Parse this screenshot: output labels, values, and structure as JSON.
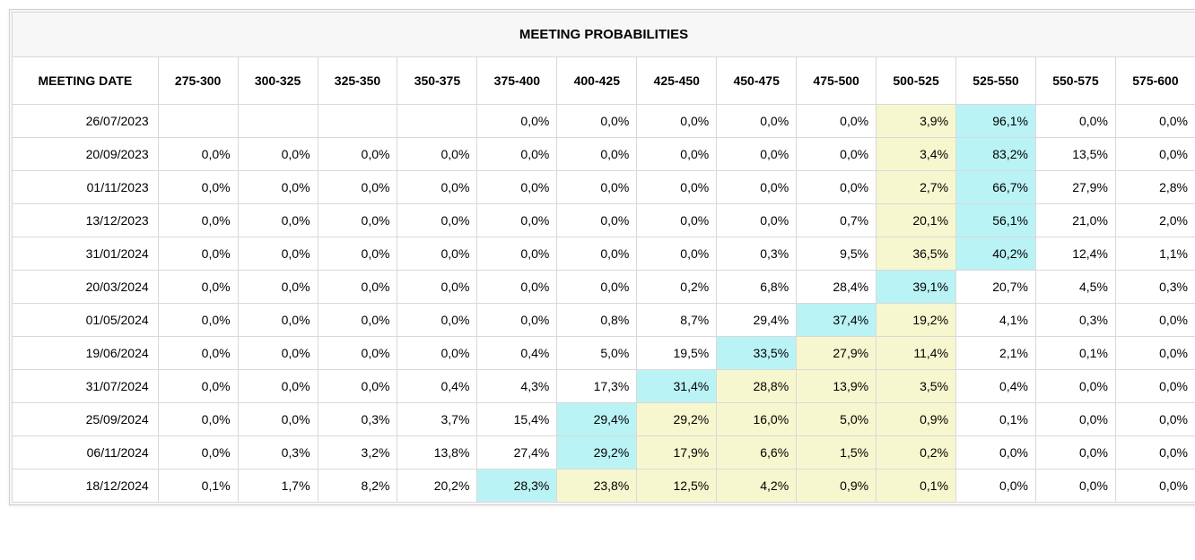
{
  "title": "MEETING PROBABILITIES",
  "date_header": "MEETING DATE",
  "columns": [
    "275-300",
    "300-325",
    "325-350",
    "350-375",
    "375-400",
    "400-425",
    "425-450",
    "450-475",
    "475-500",
    "500-525",
    "525-550",
    "550-575",
    "575-600"
  ],
  "highlight_colors": {
    "max": "#baf3f5",
    "secondary": "#f6f7cf",
    "none": "#ffffff"
  },
  "rows": [
    {
      "date": "26/07/2023",
      "cells": [
        {
          "v": "",
          "h": "none"
        },
        {
          "v": "",
          "h": "none"
        },
        {
          "v": "",
          "h": "none"
        },
        {
          "v": "",
          "h": "none"
        },
        {
          "v": "0,0%",
          "h": "none"
        },
        {
          "v": "0,0%",
          "h": "none"
        },
        {
          "v": "0,0%",
          "h": "none"
        },
        {
          "v": "0,0%",
          "h": "none"
        },
        {
          "v": "0,0%",
          "h": "none"
        },
        {
          "v": "3,9%",
          "h": "secondary"
        },
        {
          "v": "96,1%",
          "h": "max"
        },
        {
          "v": "0,0%",
          "h": "none"
        },
        {
          "v": "0,0%",
          "h": "none"
        }
      ]
    },
    {
      "date": "20/09/2023",
      "cells": [
        {
          "v": "0,0%",
          "h": "none"
        },
        {
          "v": "0,0%",
          "h": "none"
        },
        {
          "v": "0,0%",
          "h": "none"
        },
        {
          "v": "0,0%",
          "h": "none"
        },
        {
          "v": "0,0%",
          "h": "none"
        },
        {
          "v": "0,0%",
          "h": "none"
        },
        {
          "v": "0,0%",
          "h": "none"
        },
        {
          "v": "0,0%",
          "h": "none"
        },
        {
          "v": "0,0%",
          "h": "none"
        },
        {
          "v": "3,4%",
          "h": "secondary"
        },
        {
          "v": "83,2%",
          "h": "max"
        },
        {
          "v": "13,5%",
          "h": "none"
        },
        {
          "v": "0,0%",
          "h": "none"
        }
      ]
    },
    {
      "date": "01/11/2023",
      "cells": [
        {
          "v": "0,0%",
          "h": "none"
        },
        {
          "v": "0,0%",
          "h": "none"
        },
        {
          "v": "0,0%",
          "h": "none"
        },
        {
          "v": "0,0%",
          "h": "none"
        },
        {
          "v": "0,0%",
          "h": "none"
        },
        {
          "v": "0,0%",
          "h": "none"
        },
        {
          "v": "0,0%",
          "h": "none"
        },
        {
          "v": "0,0%",
          "h": "none"
        },
        {
          "v": "0,0%",
          "h": "none"
        },
        {
          "v": "2,7%",
          "h": "secondary"
        },
        {
          "v": "66,7%",
          "h": "max"
        },
        {
          "v": "27,9%",
          "h": "none"
        },
        {
          "v": "2,8%",
          "h": "none"
        }
      ]
    },
    {
      "date": "13/12/2023",
      "cells": [
        {
          "v": "0,0%",
          "h": "none"
        },
        {
          "v": "0,0%",
          "h": "none"
        },
        {
          "v": "0,0%",
          "h": "none"
        },
        {
          "v": "0,0%",
          "h": "none"
        },
        {
          "v": "0,0%",
          "h": "none"
        },
        {
          "v": "0,0%",
          "h": "none"
        },
        {
          "v": "0,0%",
          "h": "none"
        },
        {
          "v": "0,0%",
          "h": "none"
        },
        {
          "v": "0,7%",
          "h": "none"
        },
        {
          "v": "20,1%",
          "h": "secondary"
        },
        {
          "v": "56,1%",
          "h": "max"
        },
        {
          "v": "21,0%",
          "h": "none"
        },
        {
          "v": "2,0%",
          "h": "none"
        }
      ]
    },
    {
      "date": "31/01/2024",
      "cells": [
        {
          "v": "0,0%",
          "h": "none"
        },
        {
          "v": "0,0%",
          "h": "none"
        },
        {
          "v": "0,0%",
          "h": "none"
        },
        {
          "v": "0,0%",
          "h": "none"
        },
        {
          "v": "0,0%",
          "h": "none"
        },
        {
          "v": "0,0%",
          "h": "none"
        },
        {
          "v": "0,0%",
          "h": "none"
        },
        {
          "v": "0,3%",
          "h": "none"
        },
        {
          "v": "9,5%",
          "h": "none"
        },
        {
          "v": "36,5%",
          "h": "secondary"
        },
        {
          "v": "40,2%",
          "h": "max"
        },
        {
          "v": "12,4%",
          "h": "none"
        },
        {
          "v": "1,1%",
          "h": "none"
        }
      ]
    },
    {
      "date": "20/03/2024",
      "cells": [
        {
          "v": "0,0%",
          "h": "none"
        },
        {
          "v": "0,0%",
          "h": "none"
        },
        {
          "v": "0,0%",
          "h": "none"
        },
        {
          "v": "0,0%",
          "h": "none"
        },
        {
          "v": "0,0%",
          "h": "none"
        },
        {
          "v": "0,0%",
          "h": "none"
        },
        {
          "v": "0,2%",
          "h": "none"
        },
        {
          "v": "6,8%",
          "h": "none"
        },
        {
          "v": "28,4%",
          "h": "none"
        },
        {
          "v": "39,1%",
          "h": "max"
        },
        {
          "v": "20,7%",
          "h": "none"
        },
        {
          "v": "4,5%",
          "h": "none"
        },
        {
          "v": "0,3%",
          "h": "none"
        }
      ]
    },
    {
      "date": "01/05/2024",
      "cells": [
        {
          "v": "0,0%",
          "h": "none"
        },
        {
          "v": "0,0%",
          "h": "none"
        },
        {
          "v": "0,0%",
          "h": "none"
        },
        {
          "v": "0,0%",
          "h": "none"
        },
        {
          "v": "0,0%",
          "h": "none"
        },
        {
          "v": "0,8%",
          "h": "none"
        },
        {
          "v": "8,7%",
          "h": "none"
        },
        {
          "v": "29,4%",
          "h": "none"
        },
        {
          "v": "37,4%",
          "h": "max"
        },
        {
          "v": "19,2%",
          "h": "secondary"
        },
        {
          "v": "4,1%",
          "h": "none"
        },
        {
          "v": "0,3%",
          "h": "none"
        },
        {
          "v": "0,0%",
          "h": "none"
        }
      ]
    },
    {
      "date": "19/06/2024",
      "cells": [
        {
          "v": "0,0%",
          "h": "none"
        },
        {
          "v": "0,0%",
          "h": "none"
        },
        {
          "v": "0,0%",
          "h": "none"
        },
        {
          "v": "0,0%",
          "h": "none"
        },
        {
          "v": "0,4%",
          "h": "none"
        },
        {
          "v": "5,0%",
          "h": "none"
        },
        {
          "v": "19,5%",
          "h": "none"
        },
        {
          "v": "33,5%",
          "h": "max"
        },
        {
          "v": "27,9%",
          "h": "secondary"
        },
        {
          "v": "11,4%",
          "h": "secondary"
        },
        {
          "v": "2,1%",
          "h": "none"
        },
        {
          "v": "0,1%",
          "h": "none"
        },
        {
          "v": "0,0%",
          "h": "none"
        }
      ]
    },
    {
      "date": "31/07/2024",
      "cells": [
        {
          "v": "0,0%",
          "h": "none"
        },
        {
          "v": "0,0%",
          "h": "none"
        },
        {
          "v": "0,0%",
          "h": "none"
        },
        {
          "v": "0,4%",
          "h": "none"
        },
        {
          "v": "4,3%",
          "h": "none"
        },
        {
          "v": "17,3%",
          "h": "none"
        },
        {
          "v": "31,4%",
          "h": "max"
        },
        {
          "v": "28,8%",
          "h": "secondary"
        },
        {
          "v": "13,9%",
          "h": "secondary"
        },
        {
          "v": "3,5%",
          "h": "secondary"
        },
        {
          "v": "0,4%",
          "h": "none"
        },
        {
          "v": "0,0%",
          "h": "none"
        },
        {
          "v": "0,0%",
          "h": "none"
        }
      ]
    },
    {
      "date": "25/09/2024",
      "cells": [
        {
          "v": "0,0%",
          "h": "none"
        },
        {
          "v": "0,0%",
          "h": "none"
        },
        {
          "v": "0,3%",
          "h": "none"
        },
        {
          "v": "3,7%",
          "h": "none"
        },
        {
          "v": "15,4%",
          "h": "none"
        },
        {
          "v": "29,4%",
          "h": "max"
        },
        {
          "v": "29,2%",
          "h": "secondary"
        },
        {
          "v": "16,0%",
          "h": "secondary"
        },
        {
          "v": "5,0%",
          "h": "secondary"
        },
        {
          "v": "0,9%",
          "h": "secondary"
        },
        {
          "v": "0,1%",
          "h": "none"
        },
        {
          "v": "0,0%",
          "h": "none"
        },
        {
          "v": "0,0%",
          "h": "none"
        }
      ]
    },
    {
      "date": "06/11/2024",
      "cells": [
        {
          "v": "0,0%",
          "h": "none"
        },
        {
          "v": "0,3%",
          "h": "none"
        },
        {
          "v": "3,2%",
          "h": "none"
        },
        {
          "v": "13,8%",
          "h": "none"
        },
        {
          "v": "27,4%",
          "h": "none"
        },
        {
          "v": "29,2%",
          "h": "max"
        },
        {
          "v": "17,9%",
          "h": "secondary"
        },
        {
          "v": "6,6%",
          "h": "secondary"
        },
        {
          "v": "1,5%",
          "h": "secondary"
        },
        {
          "v": "0,2%",
          "h": "secondary"
        },
        {
          "v": "0,0%",
          "h": "none"
        },
        {
          "v": "0,0%",
          "h": "none"
        },
        {
          "v": "0,0%",
          "h": "none"
        }
      ]
    },
    {
      "date": "18/12/2024",
      "cells": [
        {
          "v": "0,1%",
          "h": "none"
        },
        {
          "v": "1,7%",
          "h": "none"
        },
        {
          "v": "8,2%",
          "h": "none"
        },
        {
          "v": "20,2%",
          "h": "none"
        },
        {
          "v": "28,3%",
          "h": "max"
        },
        {
          "v": "23,8%",
          "h": "secondary"
        },
        {
          "v": "12,5%",
          "h": "secondary"
        },
        {
          "v": "4,2%",
          "h": "secondary"
        },
        {
          "v": "0,9%",
          "h": "secondary"
        },
        {
          "v": "0,1%",
          "h": "secondary"
        },
        {
          "v": "0,0%",
          "h": "none"
        },
        {
          "v": "0,0%",
          "h": "none"
        },
        {
          "v": "0,0%",
          "h": "none"
        }
      ]
    }
  ]
}
